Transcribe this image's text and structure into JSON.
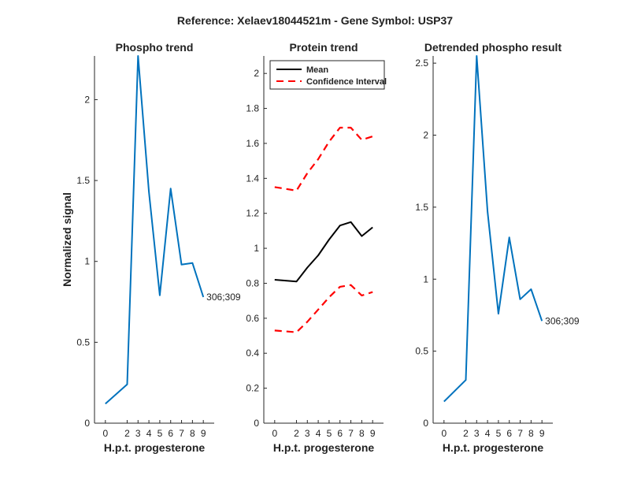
{
  "figure_title": "Reference:  Xelaev18044521m - Gene Symbol:  USP37",
  "chart_data": [
    {
      "type": "line",
      "title": "Phospho trend",
      "xlabel": "H.p.t. progesterone",
      "ylabel": "Normalized signal",
      "x": [
        0,
        2,
        3,
        4,
        5,
        6,
        7,
        8,
        9
      ],
      "xticks": [
        "0",
        "2",
        "3",
        "4",
        "5",
        "6",
        "7",
        "8",
        "9"
      ],
      "ylim": [
        0,
        2.27
      ],
      "yticks": [
        "0",
        "0.5",
        "1",
        "1.5",
        "2"
      ],
      "series": [
        {
          "values": [
            0.12,
            0.24,
            2.27,
            1.43,
            0.79,
            1.45,
            0.98,
            0.99,
            0.78
          ],
          "color": "#0072BD",
          "style": "solid",
          "end_label": "306;309"
        }
      ]
    },
    {
      "type": "line",
      "title": "Protein trend",
      "xlabel": "H.p.t. progesterone",
      "ylabel": "",
      "x": [
        0,
        2,
        3,
        4,
        5,
        6,
        7,
        8,
        9
      ],
      "xticks": [
        "0",
        "2",
        "3",
        "4",
        "5",
        "6",
        "7",
        "8",
        "9"
      ],
      "ylim": [
        0,
        2.1
      ],
      "yticks": [
        "0",
        "0.2",
        "0.4",
        "0.6",
        "0.8",
        "1",
        "1.2",
        "1.4",
        "1.6",
        "1.8",
        "2"
      ],
      "legend": {
        "position": "top-left",
        "entries": [
          "Mean",
          "Confidence Interval"
        ]
      },
      "series": [
        {
          "name": "Mean",
          "values": [
            0.82,
            0.81,
            0.89,
            0.96,
            1.05,
            1.13,
            1.15,
            1.07,
            1.12
          ],
          "color": "#000000",
          "style": "solid"
        },
        {
          "name": "Confidence Interval",
          "values": [
            1.35,
            1.33,
            1.43,
            1.51,
            1.61,
            1.69,
            1.69,
            1.62,
            1.64
          ],
          "color": "#ff0000",
          "style": "dashed"
        },
        {
          "name": "Confidence Interval",
          "values": [
            0.53,
            0.52,
            0.58,
            0.65,
            0.72,
            0.78,
            0.79,
            0.73,
            0.75
          ],
          "color": "#ff0000",
          "style": "dashed"
        }
      ]
    },
    {
      "type": "line",
      "title": "Detrended phospho result",
      "xlabel": "H.p.t. progesterone",
      "ylabel": "",
      "x": [
        0,
        2,
        3,
        4,
        5,
        6,
        7,
        8,
        9
      ],
      "xticks": [
        "0",
        "2",
        "3",
        "4",
        "5",
        "6",
        "7",
        "8",
        "9"
      ],
      "ylim": [
        0,
        2.55
      ],
      "yticks": [
        "0",
        "0.5",
        "1",
        "1.5",
        "2",
        "2.5"
      ],
      "series": [
        {
          "values": [
            0.15,
            0.3,
            2.55,
            1.47,
            0.76,
            1.29,
            0.86,
            0.93,
            0.71
          ],
          "color": "#0072BD",
          "style": "solid",
          "end_label": "306;309"
        }
      ]
    }
  ]
}
